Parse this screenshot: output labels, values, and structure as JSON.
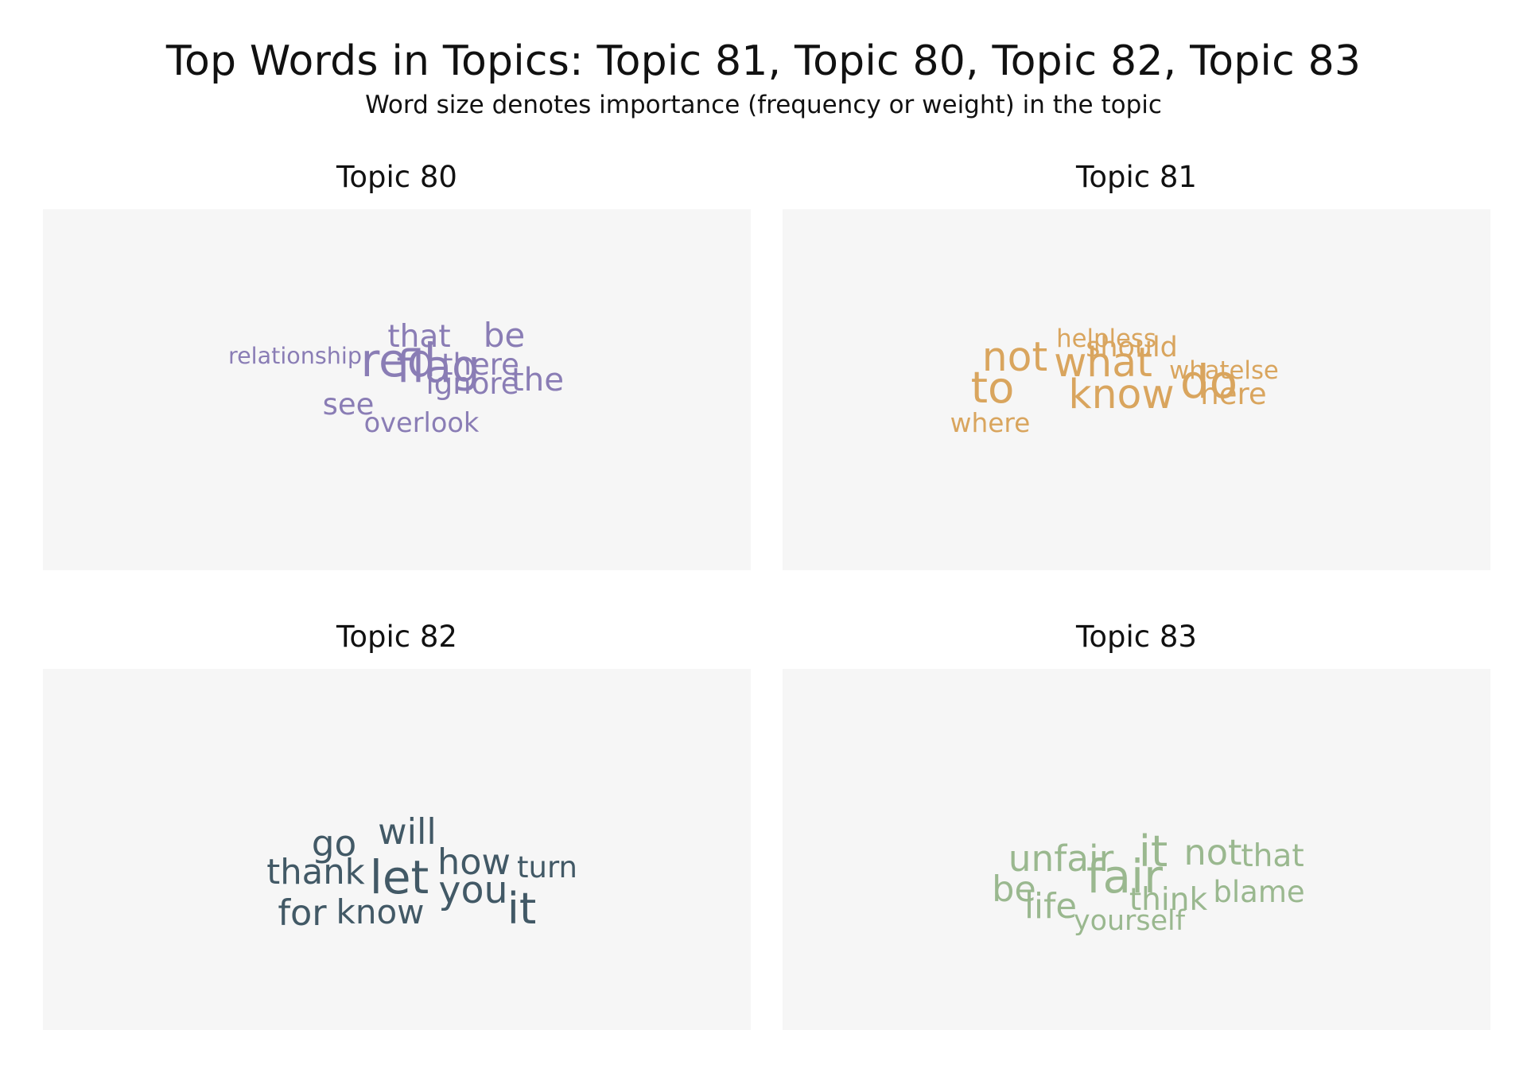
{
  "title": "Top Words in Topics: Topic 81, Topic 80, Topic 82, Topic 83",
  "subtitle": "Word size denotes importance (frequency or weight) in the topic",
  "chart_data": [
    {
      "type": "wordcloud",
      "title": "Topic 80",
      "color": "#8a7db5",
      "words": [
        {
          "text": "red",
          "weight": 1.0
        },
        {
          "text": "flag",
          "weight": 0.95
        },
        {
          "text": "be",
          "weight": 0.62
        },
        {
          "text": "the",
          "weight": 0.58
        },
        {
          "text": "that",
          "weight": 0.55
        },
        {
          "text": "there",
          "weight": 0.5
        },
        {
          "text": "ignore",
          "weight": 0.5
        },
        {
          "text": "see",
          "weight": 0.5
        },
        {
          "text": "overlook",
          "weight": 0.42
        },
        {
          "text": "relationship",
          "weight": 0.3
        }
      ]
    },
    {
      "type": "wordcloud",
      "title": "Topic 81",
      "color": "#d9a55e",
      "words": [
        {
          "text": "do",
          "weight": 1.0
        },
        {
          "text": "to",
          "weight": 0.92
        },
        {
          "text": "what",
          "weight": 0.82
        },
        {
          "text": "know",
          "weight": 0.82
        },
        {
          "text": "not",
          "weight": 0.82
        },
        {
          "text": "here",
          "weight": 0.5
        },
        {
          "text": "should",
          "weight": 0.45
        },
        {
          "text": "where",
          "weight": 0.4
        },
        {
          "text": "whatelse",
          "weight": 0.35
        },
        {
          "text": "helpless",
          "weight": 0.35
        }
      ]
    },
    {
      "type": "wordcloud",
      "title": "Topic 82",
      "color": "#425966",
      "words": [
        {
          "text": "let",
          "weight": 1.0
        },
        {
          "text": "it",
          "weight": 0.92
        },
        {
          "text": "you",
          "weight": 0.75
        },
        {
          "text": "go",
          "weight": 0.7
        },
        {
          "text": "will",
          "weight": 0.68
        },
        {
          "text": "how",
          "weight": 0.68
        },
        {
          "text": "for",
          "weight": 0.68
        },
        {
          "text": "thank",
          "weight": 0.65
        },
        {
          "text": "know",
          "weight": 0.62
        },
        {
          "text": "turn",
          "weight": 0.5
        }
      ]
    },
    {
      "type": "wordcloud",
      "title": "Topic 83",
      "color": "#9ab88f",
      "words": [
        {
          "text": "fair",
          "weight": 1.0
        },
        {
          "text": "it",
          "weight": 0.92
        },
        {
          "text": "unfair",
          "weight": 0.7
        },
        {
          "text": "not",
          "weight": 0.68
        },
        {
          "text": "be",
          "weight": 0.68
        },
        {
          "text": "life",
          "weight": 0.65
        },
        {
          "text": "think",
          "weight": 0.55
        },
        {
          "text": "that",
          "weight": 0.55
        },
        {
          "text": "blame",
          "weight": 0.5
        },
        {
          "text": "yourself",
          "weight": 0.45
        }
      ]
    }
  ]
}
